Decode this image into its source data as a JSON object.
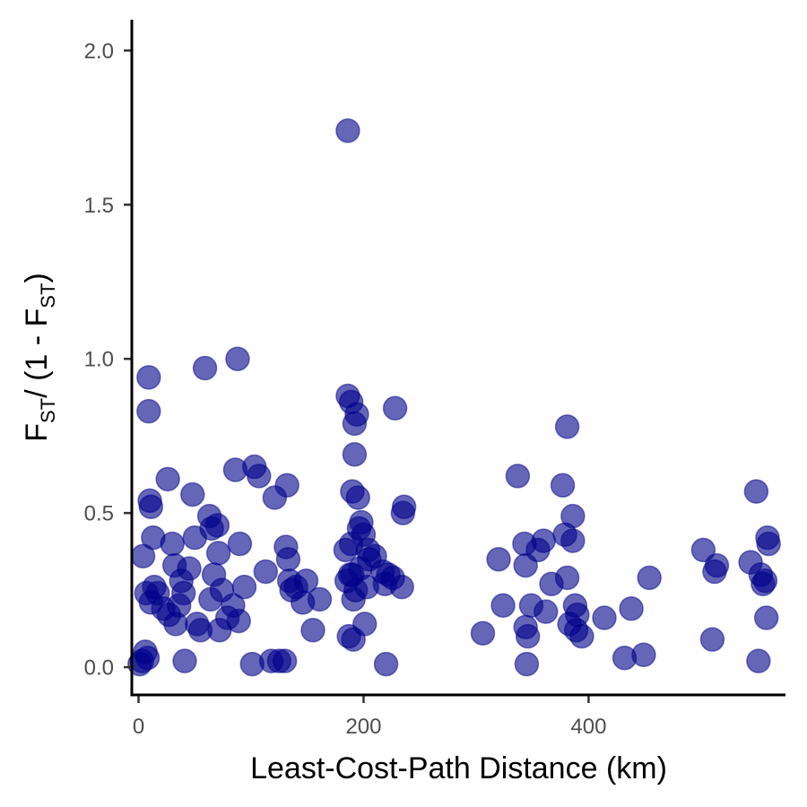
{
  "chart_data": {
    "type": "scatter",
    "xlabel": "Least-Cost-Path Distance (km)",
    "ylabel": {
      "parts": [
        "F",
        "ST",
        "/ (1 - F",
        "ST",
        ")"
      ]
    },
    "xlim": [
      -6,
      575
    ],
    "ylim": [
      -0.09,
      2.1
    ],
    "x_ticks": [
      {
        "value": 0,
        "label": "0"
      },
      {
        "value": 200,
        "label": "200"
      },
      {
        "value": 400,
        "label": "400"
      }
    ],
    "y_ticks": [
      {
        "value": 0.0,
        "label": "0.0"
      },
      {
        "value": 0.5,
        "label": "0.5"
      },
      {
        "value": 1.0,
        "label": "1.0"
      },
      {
        "value": 1.5,
        "label": "1.5"
      },
      {
        "value": 2.0,
        "label": "2.0"
      }
    ],
    "point_color": "#00008B",
    "point_opacity": 0.6,
    "grid": false,
    "legend": "none",
    "series": [
      {
        "points": [
          [
            1,
            0.01
          ],
          [
            3,
            0.02
          ],
          [
            6,
            0.05
          ],
          [
            8,
            0.03
          ],
          [
            4,
            0.36
          ],
          [
            7,
            0.24
          ],
          [
            9,
            0.94
          ],
          [
            9,
            0.83
          ],
          [
            10,
            0.54
          ],
          [
            11,
            0.52
          ],
          [
            11,
            0.21
          ],
          [
            13,
            0.42
          ],
          [
            14,
            0.26
          ],
          [
            17,
            0.24
          ],
          [
            22,
            0.19
          ],
          [
            26,
            0.61
          ],
          [
            27,
            0.17
          ],
          [
            30,
            0.4
          ],
          [
            32,
            0.33
          ],
          [
            33,
            0.14
          ],
          [
            36,
            0.2
          ],
          [
            38,
            0.28
          ],
          [
            40,
            0.24
          ],
          [
            41,
            0.02
          ],
          [
            45,
            0.32
          ],
          [
            48,
            0.56
          ],
          [
            50,
            0.42
          ],
          [
            52,
            0.14
          ],
          [
            55,
            0.12
          ],
          [
            59,
            0.97
          ],
          [
            63,
            0.49
          ],
          [
            64,
            0.22
          ],
          [
            65,
            0.45
          ],
          [
            67,
            0.3
          ],
          [
            70,
            0.46
          ],
          [
            71,
            0.37
          ],
          [
            72,
            0.12
          ],
          [
            74,
            0.25
          ],
          [
            79,
            0.16
          ],
          [
            84,
            0.2
          ],
          [
            86,
            0.64
          ],
          [
            88,
            1.0
          ],
          [
            89,
            0.15
          ],
          [
            90,
            0.4
          ],
          [
            94,
            0.26
          ],
          [
            101,
            0.01
          ],
          [
            103,
            0.65
          ],
          [
            107,
            0.62
          ],
          [
            113,
            0.31
          ],
          [
            118,
            0.02
          ],
          [
            121,
            0.55
          ],
          [
            125,
            0.02
          ],
          [
            130,
            0.02
          ],
          [
            131,
            0.39
          ],
          [
            132,
            0.59
          ],
          [
            133,
            0.35
          ],
          [
            134,
            0.28
          ],
          [
            136,
            0.25
          ],
          [
            140,
            0.26
          ],
          [
            146,
            0.21
          ],
          [
            149,
            0.28
          ],
          [
            155,
            0.12
          ],
          [
            161,
            0.22
          ],
          [
            184,
            0.38
          ],
          [
            185,
            0.28
          ],
          [
            186,
            0.88
          ],
          [
            186,
            1.74
          ],
          [
            187,
            0.1
          ],
          [
            188,
            0.3
          ],
          [
            189,
            0.86
          ],
          [
            189,
            0.4
          ],
          [
            190,
            0.3
          ],
          [
            190,
            0.57
          ],
          [
            191,
            0.22
          ],
          [
            191,
            0.09
          ],
          [
            192,
            0.69
          ],
          [
            192,
            0.79
          ],
          [
            193,
            0.25
          ],
          [
            194,
            0.82
          ],
          [
            195,
            0.55
          ],
          [
            196,
            0.45
          ],
          [
            197,
            0.32
          ],
          [
            198,
            0.47
          ],
          [
            200,
            0.43
          ],
          [
            201,
            0.14
          ],
          [
            203,
            0.26
          ],
          [
            204,
            0.38
          ],
          [
            205,
            0.35
          ],
          [
            210,
            0.36
          ],
          [
            217,
            0.31
          ],
          [
            219,
            0.27
          ],
          [
            220,
            0.01
          ],
          [
            222,
            0.3
          ],
          [
            226,
            0.29
          ],
          [
            228,
            0.84
          ],
          [
            234,
            0.26
          ],
          [
            235,
            0.5
          ],
          [
            236,
            0.52
          ],
          [
            306,
            0.11
          ],
          [
            320,
            0.35
          ],
          [
            324,
            0.2
          ],
          [
            337,
            0.62
          ],
          [
            343,
            0.4
          ],
          [
            344,
            0.33
          ],
          [
            344,
            0.13
          ],
          [
            345,
            0.01
          ],
          [
            346,
            0.1
          ],
          [
            349,
            0.2
          ],
          [
            355,
            0.38
          ],
          [
            360,
            0.41
          ],
          [
            362,
            0.18
          ],
          [
            367,
            0.27
          ],
          [
            377,
            0.59
          ],
          [
            379,
            0.43
          ],
          [
            381,
            0.78
          ],
          [
            381,
            0.29
          ],
          [
            383,
            0.14
          ],
          [
            386,
            0.49
          ],
          [
            386,
            0.41
          ],
          [
            388,
            0.2
          ],
          [
            389,
            0.12
          ],
          [
            390,
            0.17
          ],
          [
            394,
            0.1
          ],
          [
            414,
            0.16
          ],
          [
            432,
            0.03
          ],
          [
            438,
            0.19
          ],
          [
            449,
            0.04
          ],
          [
            454,
            0.29
          ],
          [
            502,
            0.38
          ],
          [
            510,
            0.09
          ],
          [
            512,
            0.31
          ],
          [
            514,
            0.33
          ],
          [
            544,
            0.34
          ],
          [
            549,
            0.57
          ],
          [
            551,
            0.02
          ],
          [
            553,
            0.3
          ],
          [
            555,
            0.27
          ],
          [
            557,
            0.28
          ],
          [
            558,
            0.16
          ],
          [
            559,
            0.42
          ],
          [
            560,
            0.4
          ]
        ]
      }
    ]
  }
}
